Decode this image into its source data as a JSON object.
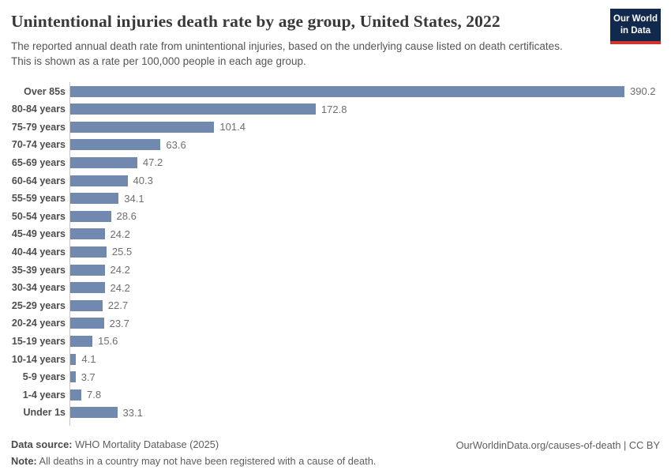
{
  "header": {
    "title": "Unintentional injuries death rate by age group, United States, 2022",
    "subtitle": "The reported annual death rate from unintentional injuries, based on the underlying cause listed on death certificates. This is shown as a rate per 100,000 people in each age group.",
    "logo": {
      "line1": "Our World",
      "line2": "in Data"
    }
  },
  "chart_data": {
    "type": "bar",
    "orientation": "horizontal",
    "title": "Unintentional injuries death rate by age group, United States, 2022",
    "xlabel": "",
    "ylabel": "",
    "unit": "deaths per 100,000 people",
    "xlim": [
      0,
      390.2
    ],
    "grid": false,
    "legend": false,
    "bar_color": "#7189ae",
    "categories": [
      "Over 85s",
      "80-84 years",
      "75-79 years",
      "70-74 years",
      "65-69 years",
      "60-64 years",
      "55-59 years",
      "50-54 years",
      "45-49 years",
      "40-44 years",
      "35-39 years",
      "30-34 years",
      "25-29 years",
      "20-24 years",
      "15-19 years",
      "10-14 years",
      "5-9 years",
      "1-4 years",
      "Under 1s"
    ],
    "values": [
      390.2,
      172.8,
      101.4,
      63.6,
      47.2,
      40.3,
      34.1,
      28.6,
      24.2,
      25.5,
      24.2,
      24.2,
      22.7,
      23.7,
      15.6,
      4.1,
      3.7,
      7.8,
      33.1
    ]
  },
  "footer": {
    "datasource_label": "Data source:",
    "datasource_value": " WHO Mortality Database (2025)",
    "note_label": "Note:",
    "note_value": " All deaths in a country may not have been registered with a cause of death.",
    "rights": "OurWorldinData.org/causes-of-death | CC BY"
  },
  "colors": {
    "bar": "#7189ae",
    "axis_line": "#c6c6c6",
    "logo_background": "#12294e",
    "logo_underline": "#d0342c"
  }
}
